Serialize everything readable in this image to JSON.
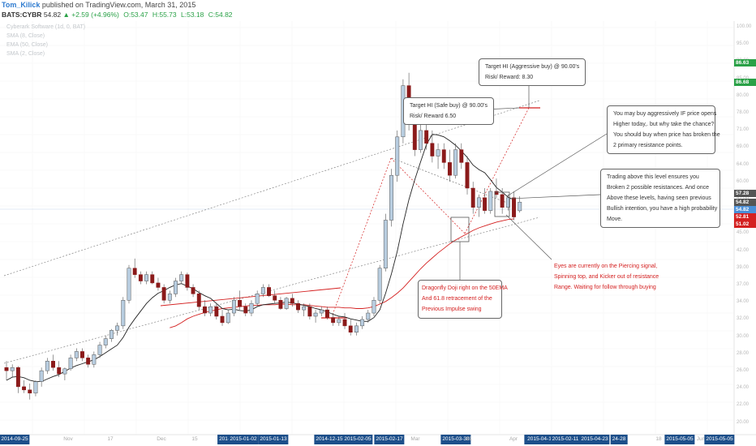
{
  "header": {
    "user": "Tom_Kilick",
    "published": "published on TradingView.com, March 31, 2015",
    "symbol": "BATS:CYBR",
    "price": "54.82",
    "change": "▲ +2.59 (+4.96%)",
    "open": "O:53.47",
    "high": "H:55.73",
    "low": "L:53.18",
    "close": "C:54.82"
  },
  "legend": [
    "Cyberark Software (1d, 0, BAT)",
    "SMA (8, Close)",
    "EMA (50, Close)",
    "SMA (2, Close)"
  ],
  "notes": {
    "aggressive": [
      "Target HI (Aggressive buy) @ 90.00's",
      "Risk/ Reward: 8.30"
    ],
    "safe": [
      "Target HI (Safe buy) @ 90.00's",
      "Risk/ Reward 6.50"
    ],
    "buy_aggressive": [
      "You may buy aggressively IF price opens",
      "Higher today,. but why take the chance?",
      "You should buy when price has broken the",
      "2 primary resistance points."
    ],
    "trading_above": [
      "Trading above this level ensures you",
      "Broken 2 possible resistances. And once",
      "Above these levels, having seen previous",
      "Bullish intention, you have a high probability",
      "Move."
    ],
    "dragonfly": [
      "Dragonfly Doji right on the 50EMA",
      "And 61.8 retracement of the",
      "Previous Impulse swing"
    ],
    "eyes": [
      "Eyes are currently on the Piercing signal,",
      "Spinning top, and Kicker out of resistance",
      "Range. Waiting for follow through buying"
    ]
  },
  "price_axis": [
    "100.00",
    "95.00",
    "90.00",
    "85.00",
    "80.00",
    "78.00",
    "71.00",
    "69.00",
    "64.00",
    "60.00",
    "57.00",
    "49.00",
    "45.00",
    "42.00",
    "39.00",
    "37.00",
    "34.00",
    "32.00",
    "30.00",
    "28.00",
    "26.00",
    "24.00",
    "22.00",
    "20.00"
  ],
  "price_tags": [
    {
      "text": "86.63",
      "color": "#2aa147"
    },
    {
      "text": "86.68",
      "color": "#2aa147"
    },
    {
      "text": "57.28",
      "color": "#555555"
    },
    {
      "text": "54.82",
      "color": "#555555"
    },
    {
      "text": "54.82",
      "color": "#4a8fd8"
    },
    {
      "text": "52.81",
      "color": "#d42020"
    },
    {
      "text": "51.02",
      "color": "#d42020"
    }
  ],
  "time_axis": [
    {
      "text": "2014-09-25",
      "hl": true
    },
    {
      "text": "Nov",
      "hl": false
    },
    {
      "text": "17",
      "hl": false
    },
    {
      "text": "Dec",
      "hl": false
    },
    {
      "text": "15",
      "hl": false
    },
    {
      "text": "2014-12",
      "hl": true
    },
    {
      "text": "2015-01-02",
      "hl": true
    },
    {
      "text": "2015-01-13",
      "hl": true
    },
    {
      "text": "2014-12-15",
      "hl": true
    },
    {
      "text": "2015-02-05",
      "hl": true
    },
    {
      "text": "2015-02-17",
      "hl": true
    },
    {
      "text": "Mar",
      "hl": false
    },
    {
      "text": "2015-03-30",
      "hl": true
    },
    {
      "text": "31",
      "hl": false
    },
    {
      "text": "Apr",
      "hl": false
    },
    {
      "text": "20",
      "hl": true
    },
    {
      "text": "2015-04-1",
      "hl": true
    },
    {
      "text": "2015-02-11",
      "hl": true
    },
    {
      "text": "2015-04-23",
      "hl": true
    },
    {
      "text": "24-28",
      "hl": true
    },
    {
      "text": "18",
      "hl": false
    },
    {
      "text": "2015-05-05",
      "hl": true
    },
    {
      "text": "Jun",
      "hl": false
    },
    {
      "text": "2015-05-05",
      "hl": true
    }
  ],
  "colors": {
    "up": "#b8cde0",
    "down": "#8b1a1a",
    "ema": "#d42020",
    "sma": "#222222",
    "annot": "#d42020"
  },
  "candles": [
    [
      29,
      30,
      27,
      28.5
    ],
    [
      28.5,
      29.5,
      27.5,
      29
    ],
    [
      29,
      29.2,
      25,
      26
    ],
    [
      26,
      27,
      25,
      25.5
    ],
    [
      25.5,
      26.5,
      24,
      25
    ],
    [
      25,
      27,
      24.5,
      26.8
    ],
    [
      26.8,
      29,
      26,
      28.5
    ],
    [
      28.5,
      30.5,
      28,
      30
    ],
    [
      30,
      31,
      28.5,
      29
    ],
    [
      29,
      30,
      27.5,
      28
    ],
    [
      28,
      29,
      27,
      28.8
    ],
    [
      28.8,
      31,
      28.5,
      30.5
    ],
    [
      30.5,
      32,
      30,
      31.5
    ],
    [
      31.5,
      32,
      30,
      30.5
    ],
    [
      30.5,
      31,
      29,
      29.5
    ],
    [
      29.5,
      31.5,
      29,
      31
    ],
    [
      31,
      33,
      30.5,
      32.5
    ],
    [
      32.5,
      34,
      32,
      33.5
    ],
    [
      33.5,
      35,
      33,
      34.8
    ],
    [
      34.8,
      36,
      34,
      35.5
    ],
    [
      35.5,
      40,
      35,
      39.5
    ],
    [
      39.5,
      45,
      39,
      44.5
    ],
    [
      44.5,
      46,
      43,
      43.5
    ],
    [
      43.5,
      44,
      42,
      42.5
    ],
    [
      42.5,
      44,
      42,
      43.5
    ],
    [
      43.5,
      44,
      42,
      42.2
    ],
    [
      42.2,
      43,
      41,
      41.5
    ],
    [
      41.5,
      42,
      39,
      39.5
    ],
    [
      39.5,
      41,
      39,
      40.5
    ],
    [
      40.5,
      43,
      40,
      42.5
    ],
    [
      42.5,
      44,
      42,
      43.5
    ],
    [
      43.5,
      43.8,
      41,
      41.5
    ],
    [
      41.5,
      42,
      40,
      40.5
    ],
    [
      40.5,
      41,
      38,
      38.5
    ],
    [
      38.5,
      39.5,
      37,
      37.5
    ],
    [
      37.5,
      39,
      37,
      38.5
    ],
    [
      38.5,
      39,
      36.5,
      37
    ],
    [
      37,
      38,
      35.5,
      36
    ],
    [
      36,
      38,
      35.8,
      37.5
    ],
    [
      37.5,
      40,
      37,
      39.5
    ],
    [
      39.5,
      41,
      38,
      38.5
    ],
    [
      38.5,
      39,
      37,
      37.5
    ],
    [
      37.5,
      39.5,
      37,
      39
    ],
    [
      39,
      41,
      38.5,
      40.5
    ],
    [
      40.5,
      42,
      40,
      41.5
    ],
    [
      41.5,
      42,
      40,
      40.2
    ],
    [
      40.2,
      41,
      39,
      39.5
    ],
    [
      39.5,
      40,
      38,
      38.2
    ],
    [
      38.2,
      40,
      38,
      39.8
    ],
    [
      39.8,
      40.5,
      38.5,
      39
    ],
    [
      39,
      39.5,
      37.5,
      38
    ],
    [
      38,
      39,
      37,
      38.5
    ],
    [
      38.5,
      39,
      36.5,
      37
    ],
    [
      37,
      38,
      36,
      37.5
    ],
    [
      37.5,
      38.5,
      37,
      38
    ],
    [
      38,
      38.5,
      36.5,
      36.8
    ],
    [
      36.8,
      37.5,
      35.5,
      36
    ],
    [
      36,
      37,
      35.5,
      36.5
    ],
    [
      36.5,
      37.5,
      35,
      35.5
    ],
    [
      35.5,
      36.5,
      34,
      34.5
    ],
    [
      34.5,
      36,
      34,
      35.5
    ],
    [
      35.5,
      37,
      35,
      36.5
    ],
    [
      36.5,
      38,
      36,
      37.5
    ],
    [
      37.5,
      40,
      37,
      39.5
    ],
    [
      39.5,
      45,
      39,
      44.5
    ],
    [
      44.5,
      53,
      44,
      52
    ],
    [
      52,
      60,
      51,
      59
    ],
    [
      59,
      66,
      58,
      65
    ],
    [
      65,
      74,
      64,
      73
    ],
    [
      73,
      75,
      66,
      67
    ],
    [
      67,
      70,
      62,
      63
    ],
    [
      63,
      67,
      62.5,
      66
    ],
    [
      66,
      68,
      63,
      64
    ],
    [
      64,
      66,
      61,
      62
    ],
    [
      62,
      64,
      60,
      63
    ],
    [
      63,
      64,
      60,
      61
    ],
    [
      61,
      63,
      58,
      59
    ],
    [
      59,
      64,
      58.5,
      63
    ],
    [
      63,
      64,
      60,
      61
    ],
    [
      61,
      62,
      56,
      57
    ],
    [
      57,
      58,
      53,
      54
    ],
    [
      54,
      56,
      52.5,
      55.5
    ],
    [
      55.5,
      57,
      53,
      53.5
    ],
    [
      53.5,
      57,
      53,
      56.5
    ],
    [
      56.5,
      58.5,
      55.5,
      56
    ],
    [
      56,
      57,
      53,
      54
    ],
    [
      54,
      56,
      53.5,
      55.5
    ],
    [
      55.5,
      56.5,
      52,
      52.5
    ],
    [
      53.47,
      55.73,
      53.18,
      54.82
    ]
  ],
  "sma": [
    27,
    27.5,
    27.6,
    27.4,
    27,
    26.8,
    26.8,
    27.2,
    27.6,
    27.9,
    28.4,
    28.9,
    29.3,
    29.6,
    29.9,
    30.2,
    30.7,
    31.3,
    31.9,
    32.5,
    33.7,
    35.3,
    36.6,
    37.8,
    39,
    39.9,
    40.6,
    41,
    41.5,
    41.9,
    42.1,
    41.7,
    41.3,
    40.7,
    40.2,
    39.8,
    39,
    38.2,
    38,
    38.1,
    37.9,
    37.8,
    38,
    38.5,
    38.8,
    38.9,
    39,
    39.1,
    39.2,
    39.1,
    38.9,
    38.7,
    38.5,
    38.2,
    38,
    37.7,
    37.3,
    37,
    36.9,
    36.6,
    36.4,
    36.2,
    36.2,
    36.8,
    38,
    40.6,
    43.6,
    47.1,
    51.4,
    55.2,
    58.3,
    61.1,
    63.8,
    65.4,
    65.3,
    65,
    64.4,
    63.7,
    62.8,
    61.8,
    60.6,
    59.9,
    59.4,
    58.3,
    57.1,
    56.4,
    55.6,
    55.2
  ],
  "ema_start": 28,
  "ema": [
    35.2,
    35.5,
    36,
    36.6,
    37,
    37.3,
    37.6,
    37.8,
    38,
    38.2,
    38.3,
    38.4,
    38.5,
    38.6,
    38.7,
    38.7,
    38.8,
    38.8,
    38.8,
    38.9,
    38.9,
    38.8,
    38.8,
    38.8,
    38.7,
    38.6,
    38.5,
    38.4,
    38.4,
    38.4,
    38.3,
    38.3,
    38.2,
    38.2,
    38.3,
    38.5,
    38.9,
    39.3,
    39.9,
    40.6,
    41.4,
    42.4,
    43.4,
    44.4,
    45.3,
    46.1,
    46.9,
    47.6,
    48.3,
    48.9,
    49.4,
    49.9,
    50.4,
    50.8,
    51.1,
    51.4,
    51.7,
    51.9,
    52.1,
    52.2
  ]
}
